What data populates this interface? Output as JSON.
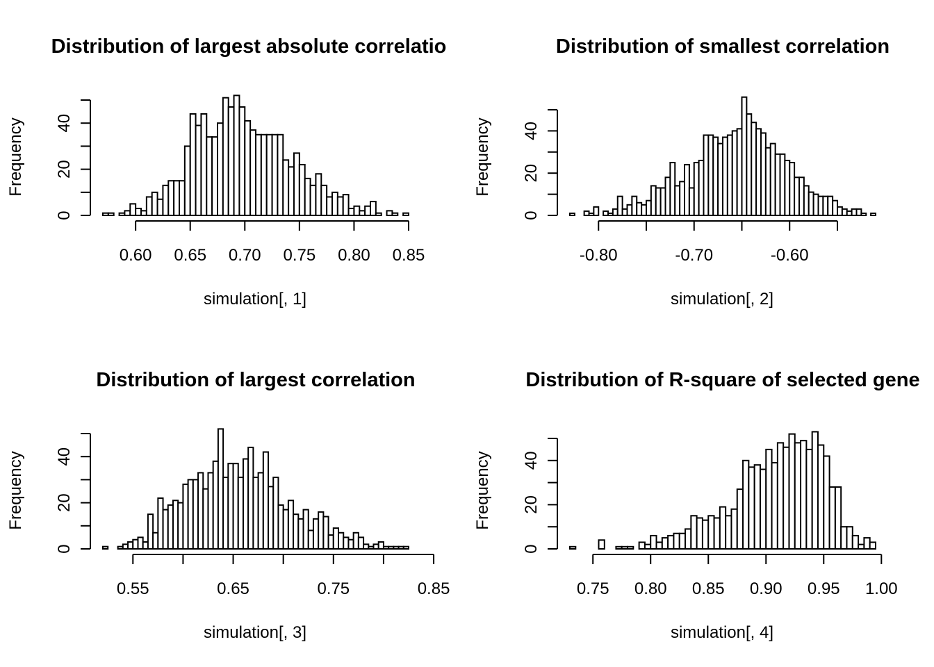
{
  "chart_data": [
    {
      "type": "bar",
      "title": "Distribution of largest absolute correlatio",
      "xlabel": "simulation[, 1]",
      "ylabel": "Frequency",
      "bin_start": 0.57,
      "bin_width": 0.005,
      "values": [
        1,
        1,
        0,
        1,
        2,
        5,
        3,
        2,
        8,
        10,
        7,
        13,
        15,
        15,
        15,
        30,
        44,
        39,
        44,
        34,
        34,
        40,
        51,
        47,
        52,
        47,
        41,
        37,
        35,
        35,
        35,
        35,
        35,
        24,
        21,
        27,
        22,
        16,
        13,
        18,
        13,
        8,
        10,
        8,
        9,
        3,
        4,
        2,
        4,
        6,
        1,
        0,
        2,
        1,
        0,
        1
      ],
      "xlim": [
        0.57,
        0.85
      ],
      "ylim": [
        0,
        50
      ],
      "xticks": [
        0.6,
        0.65,
        0.7,
        0.75,
        0.8,
        0.85
      ],
      "xtick_labels": [
        "0.60",
        "0.65",
        "0.70",
        "0.75",
        "0.80",
        "0.85"
      ],
      "yticks": [
        0,
        10,
        20,
        30,
        40,
        50
      ],
      "ytick_labels": [
        "0",
        "",
        "20",
        "",
        "40",
        ""
      ]
    },
    {
      "type": "bar",
      "title": "Distribution of smallest correlation",
      "xlabel": "simulation[, 2]",
      "ylabel": "Frequency",
      "bin_start": -0.83,
      "bin_width": 0.005,
      "values": [
        1,
        0,
        0,
        2,
        1,
        4,
        0,
        2,
        1,
        3,
        9,
        3,
        5,
        9,
        6,
        5,
        7,
        14,
        13,
        13,
        18,
        25,
        14,
        16,
        24,
        13,
        25,
        26,
        38,
        38,
        37,
        34,
        37,
        38,
        40,
        41,
        56,
        48,
        44,
        41,
        39,
        32,
        34,
        29,
        29,
        26,
        25,
        18,
        18,
        14,
        11,
        10,
        9,
        9,
        9,
        7,
        4,
        3,
        2,
        3,
        3,
        1,
        0,
        1
      ],
      "xlim": [
        -0.83,
        -0.51
      ],
      "ylim": [
        0,
        50
      ],
      "xticks": [
        -0.8,
        -0.75,
        -0.7,
        -0.65,
        -0.6,
        -0.55
      ],
      "xtick_labels": [
        "-0.80",
        "",
        "-0.70",
        "",
        "-0.60",
        ""
      ],
      "yticks": [
        0,
        10,
        20,
        30,
        40,
        50
      ],
      "ytick_labels": [
        "0",
        "",
        "20",
        "",
        "40",
        ""
      ]
    },
    {
      "type": "bar",
      "title": "Distribution of largest correlation",
      "xlabel": "simulation[, 3]",
      "ylabel": "Frequency",
      "bin_start": 0.52,
      "bin_width": 0.005,
      "values": [
        1,
        0,
        0,
        1,
        2,
        3,
        4,
        5,
        3,
        15,
        7,
        22,
        17,
        19,
        21,
        20,
        28,
        30,
        30,
        33,
        26,
        33,
        38,
        52,
        31,
        37,
        37,
        31,
        39,
        44,
        31,
        33,
        42,
        27,
        31,
        19,
        17,
        21,
        15,
        13,
        17,
        8,
        13,
        16,
        14,
        6,
        9,
        7,
        5,
        4,
        7,
        5,
        2,
        1,
        2,
        3,
        1,
        1,
        1,
        1,
        1
      ],
      "xlim": [
        0.52,
        0.85
      ],
      "ylim": [
        0,
        50
      ],
      "xticks": [
        0.55,
        0.6,
        0.65,
        0.7,
        0.75,
        0.8,
        0.85
      ],
      "xtick_labels": [
        "0.55",
        "",
        "0.65",
        "",
        "0.75",
        "",
        "0.85"
      ],
      "yticks": [
        0,
        10,
        20,
        30,
        40,
        50
      ],
      "ytick_labels": [
        "0",
        "",
        "20",
        "",
        "40",
        ""
      ]
    },
    {
      "type": "bar",
      "title": "Distribution of R-square of selected gene",
      "xlabel": "simulation[, 4]",
      "ylabel": "Frequency",
      "bin_start": 0.73,
      "bin_width": 0.005,
      "values": [
        1,
        0,
        0,
        0,
        0,
        4,
        0,
        0,
        1,
        1,
        1,
        0,
        3,
        2,
        6,
        3,
        5,
        6,
        7,
        7,
        9,
        15,
        14,
        13,
        15,
        14,
        19,
        15,
        18,
        27,
        40,
        37,
        38,
        36,
        45,
        39,
        48,
        46,
        52,
        48,
        49,
        45,
        53,
        47,
        42,
        28,
        28,
        10,
        10,
        6,
        2,
        5,
        3
      ],
      "xlim": [
        0.73,
        1.0
      ],
      "ylim": [
        0,
        50
      ],
      "xticks": [
        0.75,
        0.8,
        0.85,
        0.9,
        0.95,
        1.0
      ],
      "xtick_labels": [
        "0.75",
        "0.80",
        "0.85",
        "0.90",
        "0.95",
        "1.00"
      ],
      "yticks": [
        0,
        10,
        20,
        30,
        40,
        50
      ],
      "ytick_labels": [
        "0",
        "",
        "20",
        "",
        "40",
        ""
      ]
    }
  ]
}
